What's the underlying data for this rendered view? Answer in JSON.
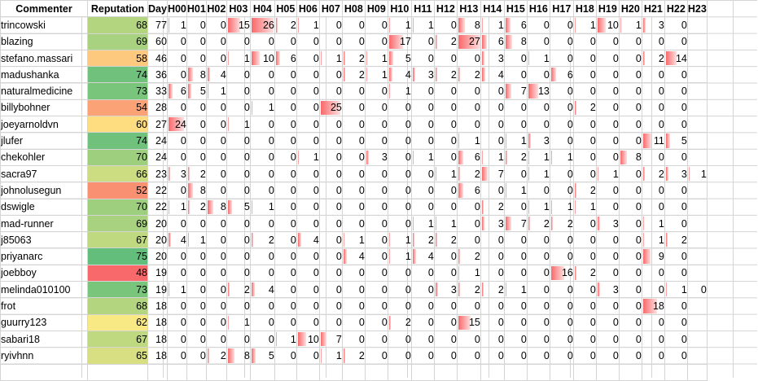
{
  "headers": [
    "Commenter",
    "Reputation",
    "Day",
    "H00",
    "H01",
    "H02",
    "H03",
    "H04",
    "H05",
    "H06",
    "H07",
    "H08",
    "H09",
    "H10",
    "H11",
    "H12",
    "H13",
    "H14",
    "H15",
    "H16",
    "H17",
    "H18",
    "H19",
    "H20",
    "H21",
    "H22",
    "H23"
  ],
  "scale": {
    "rep_min": 48,
    "rep_max": 75,
    "hour_max": 27
  },
  "rows": [
    {
      "name": "trincowski",
      "rep": 68,
      "day": 77,
      "h": [
        1,
        0,
        0,
        15,
        26,
        2,
        1,
        0,
        0,
        0,
        1,
        1,
        0,
        8,
        1,
        6,
        0,
        0,
        1,
        10,
        1,
        3,
        0,
        null
      ]
    },
    {
      "name": "blazing",
      "rep": 69,
      "day": 60,
      "h": [
        0,
        0,
        0,
        0,
        0,
        0,
        0,
        0,
        0,
        0,
        17,
        0,
        2,
        27,
        6,
        8,
        0,
        0,
        0,
        0,
        0,
        0,
        0,
        null
      ]
    },
    {
      "name": "stefano.massari",
      "rep": 58,
      "day": 46,
      "h": [
        0,
        0,
        0,
        1,
        10,
        6,
        0,
        1,
        2,
        1,
        5,
        0,
        0,
        0,
        3,
        0,
        1,
        0,
        0,
        0,
        0,
        2,
        14,
        null
      ]
    },
    {
      "name": "madushanka",
      "rep": 74,
      "day": 36,
      "h": [
        0,
        8,
        4,
        0,
        0,
        0,
        0,
        0,
        2,
        1,
        4,
        3,
        2,
        2,
        4,
        0,
        0,
        6,
        0,
        0,
        0,
        0,
        0,
        null
      ]
    },
    {
      "name": "naturalmedicine",
      "rep": 73,
      "day": 33,
      "h": [
        6,
        5,
        1,
        0,
        0,
        0,
        0,
        0,
        0,
        0,
        1,
        0,
        0,
        0,
        0,
        7,
        13,
        0,
        0,
        0,
        0,
        0,
        0,
        null
      ]
    },
    {
      "name": "billybohner",
      "rep": 54,
      "day": 28,
      "h": [
        0,
        0,
        0,
        0,
        1,
        0,
        0,
        25,
        0,
        0,
        0,
        0,
        0,
        0,
        0,
        0,
        0,
        0,
        2,
        0,
        0,
        0,
        0,
        null
      ]
    },
    {
      "name": "joeyarnoldvn",
      "rep": 60,
      "day": 27,
      "h": [
        24,
        0,
        0,
        1,
        0,
        0,
        0,
        0,
        0,
        0,
        0,
        0,
        0,
        0,
        0,
        0,
        0,
        0,
        0,
        0,
        0,
        0,
        0,
        null
      ]
    },
    {
      "name": "jlufer",
      "rep": 74,
      "day": 24,
      "h": [
        0,
        0,
        0,
        0,
        0,
        0,
        0,
        0,
        0,
        0,
        0,
        0,
        0,
        1,
        0,
        1,
        3,
        0,
        0,
        0,
        0,
        11,
        5,
        null
      ]
    },
    {
      "name": "chekohler",
      "rep": 70,
      "day": 24,
      "h": [
        0,
        0,
        0,
        0,
        0,
        0,
        1,
        0,
        0,
        3,
        0,
        1,
        0,
        6,
        1,
        2,
        1,
        1,
        0,
        0,
        8,
        0,
        0,
        null
      ]
    },
    {
      "name": "sacra97",
      "rep": 66,
      "day": 23,
      "h": [
        3,
        2,
        0,
        0,
        0,
        0,
        0,
        0,
        0,
        0,
        0,
        0,
        1,
        2,
        7,
        0,
        1,
        0,
        0,
        1,
        0,
        2,
        3,
        1
      ]
    },
    {
      "name": "johnolusegun",
      "rep": 52,
      "day": 22,
      "h": [
        0,
        8,
        0,
        0,
        0,
        0,
        0,
        0,
        0,
        0,
        0,
        0,
        0,
        6,
        0,
        1,
        0,
        0,
        2,
        0,
        0,
        0,
        0,
        null
      ]
    },
    {
      "name": "dswigle",
      "rep": 70,
      "day": 22,
      "h": [
        1,
        2,
        8,
        5,
        1,
        0,
        0,
        0,
        0,
        0,
        0,
        0,
        0,
        0,
        2,
        0,
        1,
        1,
        1,
        0,
        0,
        0,
        0,
        null
      ]
    },
    {
      "name": "mad-runner",
      "rep": 69,
      "day": 20,
      "h": [
        0,
        0,
        0,
        0,
        0,
        0,
        0,
        0,
        0,
        0,
        0,
        1,
        1,
        0,
        3,
        7,
        2,
        2,
        0,
        3,
        0,
        1,
        0,
        null
      ]
    },
    {
      "name": "j85063",
      "rep": 67,
      "day": 20,
      "h": [
        4,
        1,
        0,
        0,
        2,
        0,
        4,
        0,
        1,
        0,
        1,
        2,
        2,
        0,
        0,
        0,
        0,
        0,
        0,
        0,
        0,
        1,
        2,
        null
      ]
    },
    {
      "name": "priyanarc",
      "rep": 75,
      "day": 20,
      "h": [
        0,
        0,
        0,
        0,
        0,
        0,
        0,
        0,
        4,
        0,
        1,
        4,
        0,
        2,
        0,
        0,
        0,
        0,
        0,
        0,
        0,
        9,
        0,
        null
      ]
    },
    {
      "name": "joebboy",
      "rep": 48,
      "day": 19,
      "h": [
        0,
        0,
        0,
        0,
        0,
        0,
        0,
        0,
        0,
        0,
        0,
        0,
        0,
        1,
        0,
        0,
        0,
        16,
        2,
        0,
        0,
        0,
        0,
        null
      ]
    },
    {
      "name": "melinda010100",
      "rep": 73,
      "day": 19,
      "h": [
        1,
        0,
        0,
        2,
        4,
        0,
        0,
        0,
        0,
        0,
        0,
        0,
        3,
        2,
        2,
        1,
        0,
        0,
        0,
        3,
        0,
        0,
        1,
        0
      ]
    },
    {
      "name": "frot",
      "rep": 68,
      "day": 18,
      "h": [
        0,
        0,
        0,
        0,
        0,
        0,
        0,
        0,
        0,
        0,
        0,
        0,
        0,
        0,
        0,
        0,
        0,
        0,
        0,
        0,
        0,
        18,
        0,
        null
      ]
    },
    {
      "name": "guurry123",
      "rep": 62,
      "day": 18,
      "h": [
        0,
        0,
        0,
        1,
        0,
        0,
        0,
        0,
        0,
        0,
        2,
        0,
        0,
        15,
        0,
        0,
        0,
        0,
        0,
        0,
        0,
        0,
        0,
        null
      ]
    },
    {
      "name": "sabari18",
      "rep": 67,
      "day": 18,
      "h": [
        0,
        0,
        0,
        0,
        0,
        1,
        10,
        7,
        0,
        0,
        0,
        0,
        0,
        0,
        0,
        0,
        0,
        0,
        0,
        0,
        0,
        0,
        0,
        null
      ]
    },
    {
      "name": "ryivhnn",
      "rep": 65,
      "day": 18,
      "h": [
        0,
        0,
        2,
        8,
        5,
        0,
        0,
        1,
        2,
        0,
        0,
        0,
        0,
        0,
        0,
        0,
        0,
        0,
        0,
        0,
        0,
        0,
        0,
        null
      ]
    }
  ]
}
